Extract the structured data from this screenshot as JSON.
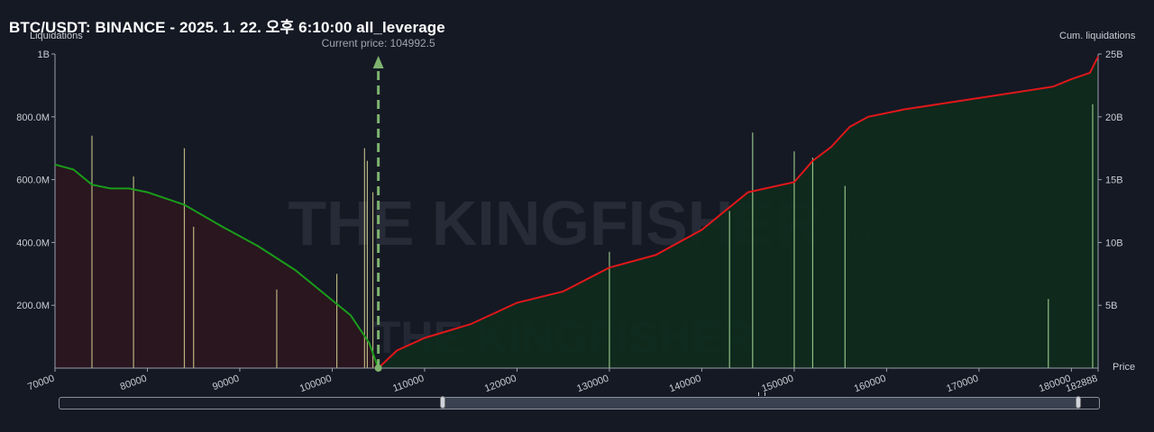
{
  "title": "BTC/USDT: BINANCE - 2025. 1. 22. 오후 6:10:00 all_leverage",
  "left_axis_title": "Liquidations",
  "right_axis_title": "Cum. liquidations",
  "x_axis_title": "Price",
  "current_price_label": "Current price: 104992.5",
  "watermark": "THE KINGFISHER",
  "watermark_suffix": ".io",
  "colors": {
    "background": "#151924",
    "short_cum_line": "#e0171a",
    "long_cum_line": "#1a9c1a",
    "short_area": "#0f2a1e",
    "long_area": "#2a1620",
    "current_price_marker": "#7db36e"
  },
  "chart_data": {
    "type": "bar",
    "current_price": 104992.5,
    "x_axis": {
      "min": 70000,
      "max": 182888,
      "ticks": [
        "70000",
        "80000",
        "90000",
        "100000",
        "110000",
        "120000",
        "130000",
        "140000",
        "150000",
        "160000",
        "170000",
        "180000",
        "182888"
      ]
    },
    "y_left": {
      "min": 0,
      "max": 1000000000,
      "ticks": [
        "200.0M",
        "400.0M",
        "600.0M",
        "800.0M",
        "1B"
      ]
    },
    "y_right": {
      "min": 0,
      "max": 25000000000,
      "ticks": [
        "5B",
        "10B",
        "15B",
        "20B",
        "25B"
      ]
    },
    "cumulative_long_liquidations": {
      "x": [
        70000,
        72000,
        74000,
        76000,
        78000,
        80000,
        84000,
        88000,
        92000,
        96000,
        100000,
        102000,
        104000,
        104990
      ],
      "y": [
        16200000000,
        15800000000,
        14600000000,
        14300000000,
        14300000000,
        14000000000,
        13000000000,
        11300000000,
        9700000000,
        7800000000,
        5400000000,
        4200000000,
        2000000000,
        0
      ]
    },
    "cumulative_short_liquidations": {
      "x": [
        104990,
        107000,
        110000,
        115000,
        120000,
        125000,
        130000,
        135000,
        140000,
        145000,
        150000,
        152000,
        154000,
        156000,
        158000,
        162000,
        170000,
        178000,
        180000,
        182000,
        182888
      ],
      "y": [
        0,
        1400000000,
        2400000000,
        3500000000,
        5200000000,
        6100000000,
        8000000000,
        9000000000,
        11000000000,
        14000000000,
        14800000000,
        16500000000,
        17600000000,
        19200000000,
        20000000000,
        20600000000,
        21500000000,
        22400000000,
        23000000000,
        23500000000,
        24800000000
      ]
    },
    "notable_liquidation_bars": [
      {
        "price": 74000,
        "value": 740000000
      },
      {
        "price": 78500,
        "value": 610000000
      },
      {
        "price": 84000,
        "value": 700000000
      },
      {
        "price": 85000,
        "value": 450000000
      },
      {
        "price": 94000,
        "value": 250000000
      },
      {
        "price": 100500,
        "value": 300000000
      },
      {
        "price": 103500,
        "value": 700000000
      },
      {
        "price": 103800,
        "value": 660000000
      },
      {
        "price": 104400,
        "value": 560000000
      },
      {
        "price": 130000,
        "value": 370000000
      },
      {
        "price": 143000,
        "value": 500000000
      },
      {
        "price": 145500,
        "value": 750000000
      },
      {
        "price": 150000,
        "value": 690000000
      },
      {
        "price": 152000,
        "value": 670000000
      },
      {
        "price": 155500,
        "value": 580000000
      },
      {
        "price": 177500,
        "value": 220000000
      },
      {
        "price": 182300,
        "value": 840000000
      }
    ]
  }
}
